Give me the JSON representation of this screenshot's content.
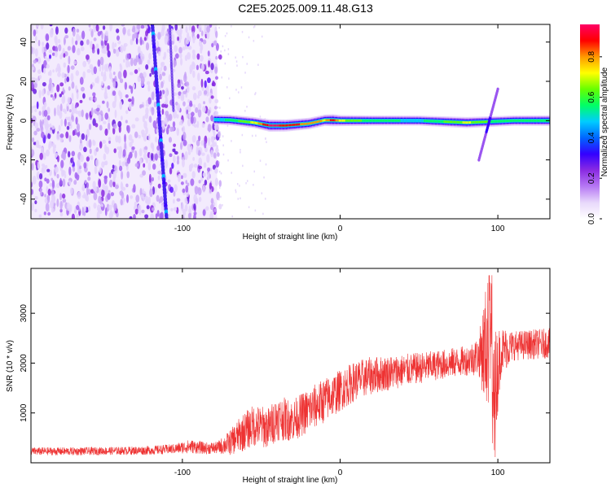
{
  "title": "C2E5.2025.009.11.48.G13",
  "chart_data": [
    {
      "type": "heatmap",
      "xlabel": "Height of straight line (km)",
      "ylabel": "Frequency (Hz)",
      "xlim": [
        -196,
        133
      ],
      "ylim": [
        -50,
        49
      ],
      "xticks": [
        -100,
        0,
        100
      ],
      "yticks": [
        -40,
        -20,
        0,
        20,
        40
      ],
      "colorbar": {
        "label": "Normalized spectral amplitude",
        "range": [
          0,
          0.96
        ],
        "ticks": [
          0.0,
          0.2,
          0.4,
          0.6,
          0.8
        ],
        "colormap": [
          "#ffffff",
          "#e8d8fb",
          "#b678f4",
          "#8a2be2",
          "#3300ff",
          "#0066ff",
          "#00ccff",
          "#00ff66",
          "#66ff00",
          "#ffff00",
          "#ff9900",
          "#ff0000",
          "#ff0066"
        ]
      },
      "features": {
        "noise_region": [
          -196,
          -78
        ],
        "streak": [
          [
            -119,
            49
          ],
          [
            -110,
            -50
          ]
        ],
        "ridge": [
          [
            -80,
            0.5,
            0.45
          ],
          [
            -70,
            0.3,
            0.55
          ],
          [
            -55,
            -1.0,
            0.7
          ],
          [
            -45,
            -2.5,
            0.95
          ],
          [
            -35,
            -2.5,
            0.9
          ],
          [
            -20,
            -1.5,
            0.8
          ],
          [
            -10,
            0.2,
            0.75
          ],
          [
            -5,
            0.2,
            0.9
          ],
          [
            0,
            0,
            0.7
          ],
          [
            20,
            0,
            0.55
          ],
          [
            50,
            0,
            0.5
          ],
          [
            80,
            -1.0,
            0.7
          ],
          [
            95,
            -0.5,
            0.6
          ],
          [
            110,
            0,
            0.55
          ],
          [
            133,
            0,
            0.6
          ]
        ],
        "chirp": [
          [
            88,
            -20
          ],
          [
            100,
            16
          ]
        ]
      }
    },
    {
      "type": "line",
      "xlabel": "Height of straight line (km)",
      "ylabel": "SNR (10 * v/v)",
      "xlim": [
        -196,
        133
      ],
      "ylim": [
        0,
        3900
      ],
      "xticks": [
        -100,
        0,
        100
      ],
      "yticks": [
        1000,
        2000,
        3000
      ],
      "color": "#ee3333",
      "series": [
        {
          "x": [
            -196,
            -170,
            -140,
            -120,
            -105,
            -95,
            -85,
            -78,
            -70,
            -62,
            -55,
            -45,
            -40,
            -30,
            -20,
            -10,
            0,
            10,
            20,
            40,
            60,
            80,
            88,
            92,
            95,
            98,
            102,
            110,
            133
          ],
          "y": [
            230,
            230,
            240,
            250,
            280,
            330,
            290,
            300,
            400,
            600,
            750,
            700,
            900,
            850,
            1050,
            1250,
            1450,
            1650,
            1750,
            1850,
            1950,
            2050,
            2150,
            2300,
            2500,
            1500,
            2250,
            2350,
            2400
          ],
          "amplitude": [
            80,
            80,
            80,
            90,
            100,
            140,
            120,
            120,
            250,
            380,
            420,
            420,
            450,
            420,
            450,
            450,
            420,
            400,
            380,
            330,
            300,
            300,
            400,
            1200,
            1400,
            1200,
            500,
            300,
            300
          ]
        }
      ]
    }
  ]
}
